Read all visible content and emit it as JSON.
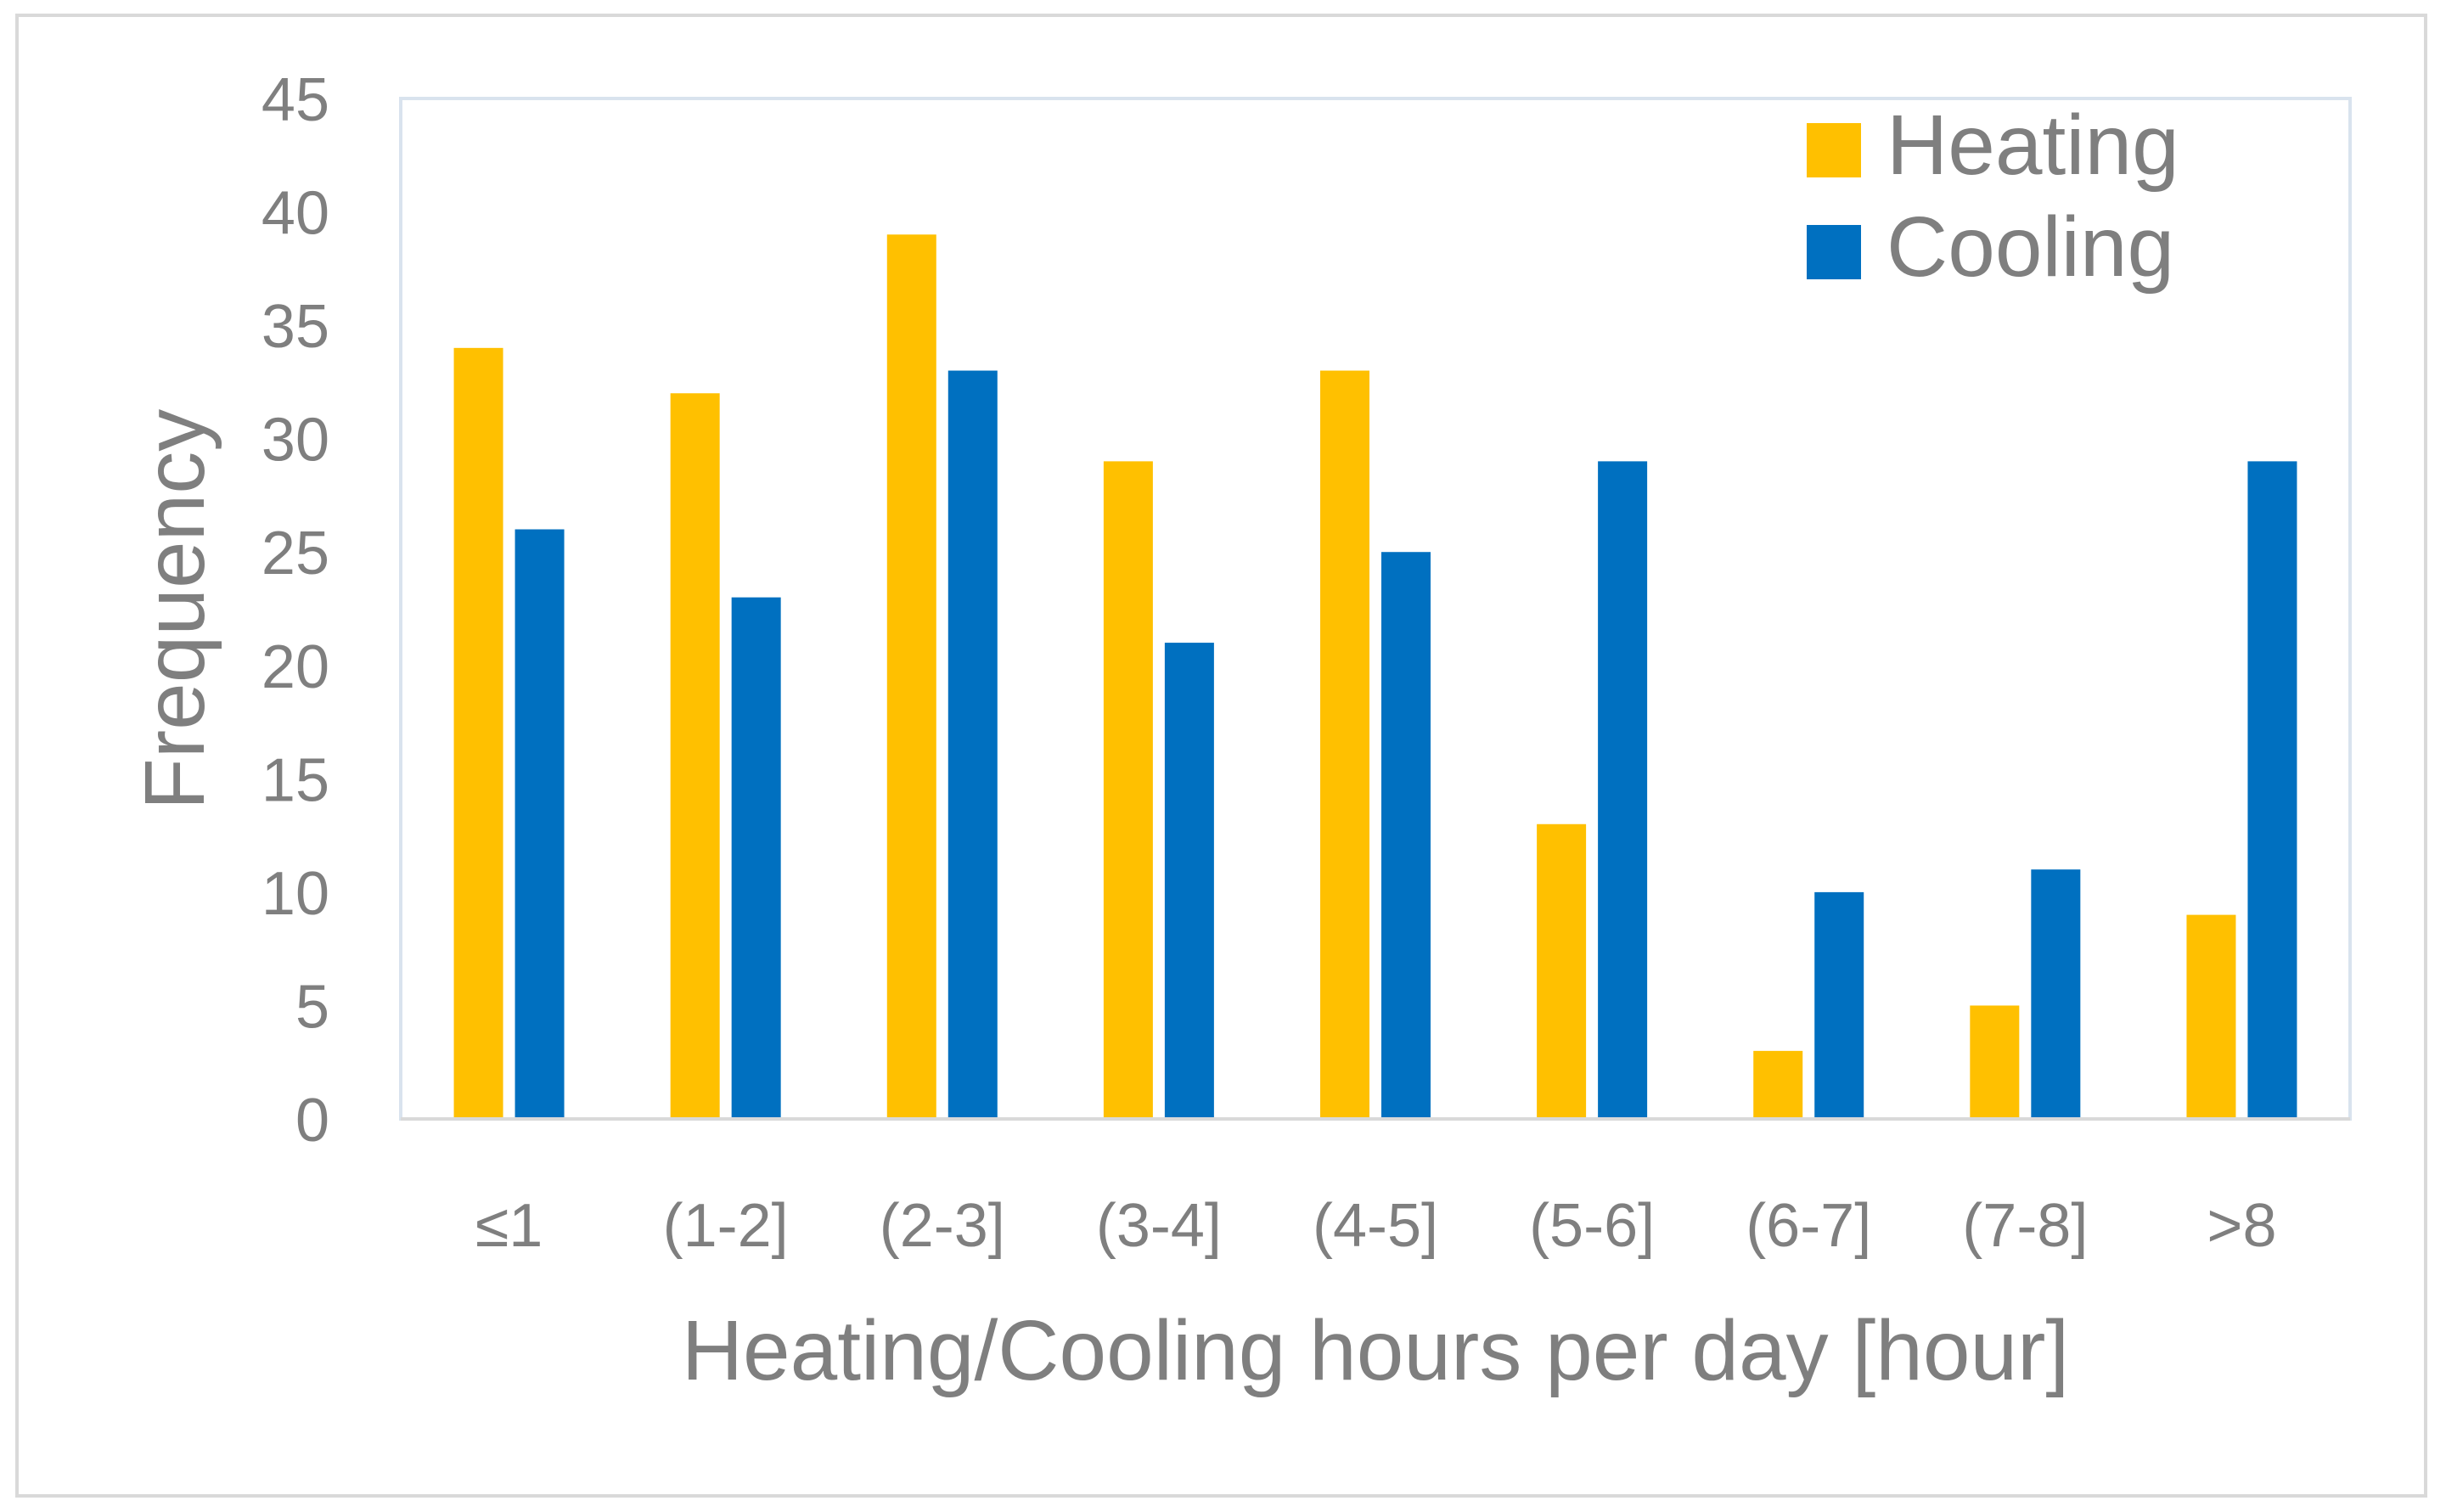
{
  "chart_data": {
    "type": "bar",
    "title": "",
    "xlabel": "Heating/Cooling hours per day [hour]",
    "ylabel": "Frequency",
    "categories": [
      "≤1",
      "(1-2]",
      "(2-3]",
      "(3-4]",
      "(4-5]",
      "(5-6]",
      "(6-7]",
      "(7-8]",
      ">8"
    ],
    "series": [
      {
        "name": "Heating",
        "color": "#FFC000",
        "values": [
          34,
          32,
          39,
          29,
          33,
          13,
          3,
          5,
          9
        ]
      },
      {
        "name": "Cooling",
        "color": "#0070C0",
        "values": [
          26,
          23,
          33,
          21,
          25,
          29,
          10,
          11,
          29
        ]
      }
    ],
    "ylim": [
      0,
      45
    ],
    "yticks": [
      0,
      5,
      10,
      15,
      20,
      25,
      30,
      35,
      40,
      45
    ],
    "grid": false,
    "legend": {
      "placement": "top-right"
    }
  }
}
